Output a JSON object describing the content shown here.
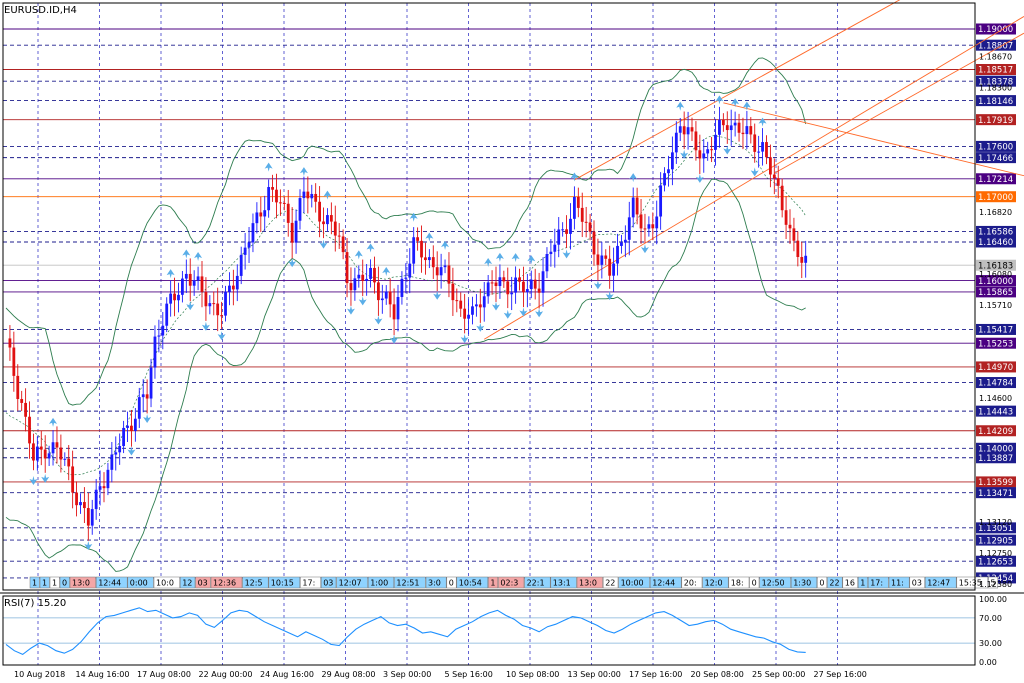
{
  "symbol_label": "EURUSD.ID,H4",
  "rsi_label": "RSI(7) 15.20",
  "colors": {
    "bull": "#1a1aff",
    "bear": "#e01010",
    "band": "#2e7d4f",
    "grid": "#2020c0",
    "channel": "#ff6a2b",
    "rsi": "#1e90ff",
    "arrow": "#5aaee8",
    "axis": "#000000"
  },
  "chart_data": [
    {
      "type": "candlestick",
      "symbol": "EURUSD.ID",
      "timeframe": "H4",
      "ylim": [
        1.1231,
        1.1931
      ],
      "x_tick_labels": [
        "10 Aug 2018",
        "14 Aug 16:00",
        "17 Aug 08:00",
        "22 Aug 00:00",
        "24 Aug 16:00",
        "29 Aug 08:00",
        "3 Sep 00:00",
        "5 Sep 16:00",
        "10 Sep 08:00",
        "13 Sep 00:00",
        "17 Sep 16:00",
        "20 Sep 08:00",
        "25 Sep 00:00",
        "27 Sep 16:00"
      ],
      "price_scale_labels": [
        "1.18670",
        "1.18300",
        "1.16820",
        "1.16080",
        "1.15710",
        "1.14600",
        "1.13120",
        "1.12750",
        "1.12380"
      ],
      "marked_levels": [
        {
          "label": "1.19000",
          "color": "#4b0082"
        },
        {
          "label": "1.18807",
          "color": "#1c1c8c"
        },
        {
          "label": "1.18517",
          "color": "#b22222"
        },
        {
          "label": "1.18378",
          "color": "#1c1c8c"
        },
        {
          "label": "1.18146",
          "color": "#1c1c8c"
        },
        {
          "label": "1.17919",
          "color": "#b22222"
        },
        {
          "label": "1.17600",
          "color": "#1c1c8c"
        },
        {
          "label": "1.17466",
          "color": "#1c1c8c"
        },
        {
          "label": "1.17214",
          "color": "#4b0082"
        },
        {
          "label": "1.17000",
          "color": "#ff6a00"
        },
        {
          "label": "1.16586",
          "color": "#1c1c8c"
        },
        {
          "label": "1.16460",
          "color": "#1c1c8c"
        },
        {
          "label": "1.16183",
          "color": "#c0c0c0"
        },
        {
          "label": "1.16000",
          "color": "#4b0082"
        },
        {
          "label": "1.15865",
          "color": "#4b0082"
        },
        {
          "label": "1.15417",
          "color": "#1c1c8c"
        },
        {
          "label": "1.15253",
          "color": "#4b0082"
        },
        {
          "label": "1.14970",
          "color": "#b22222"
        },
        {
          "label": "1.14784",
          "color": "#1c1c8c"
        },
        {
          "label": "1.14443",
          "color": "#1c1c8c"
        },
        {
          "label": "1.14209",
          "color": "#b22222"
        },
        {
          "label": "1.14000",
          "color": "#1c1c8c"
        },
        {
          "label": "1.13887",
          "color": "#1c1c8c"
        },
        {
          "label": "1.13599",
          "color": "#b22222"
        },
        {
          "label": "1.13471",
          "color": "#1c1c8c"
        },
        {
          "label": "1.13051",
          "color": "#1c1c8c"
        },
        {
          "label": "1.12905",
          "color": "#1c1c8c"
        },
        {
          "label": "1.12653",
          "color": "#1c1c8c"
        },
        {
          "label": "1.12454",
          "color": "#1c1c8c"
        }
      ],
      "close_path": [
        [
          0,
          1.1525
        ],
        [
          4,
          1.1455
        ],
        [
          7,
          1.1385
        ],
        [
          10,
          1.1402
        ],
        [
          13,
          1.1398
        ],
        [
          16,
          1.1372
        ],
        [
          19,
          1.133
        ],
        [
          21,
          1.131
        ],
        [
          24,
          1.136
        ],
        [
          27,
          1.138
        ],
        [
          30,
          1.142
        ],
        [
          33,
          1.144
        ],
        [
          36,
          1.1465
        ],
        [
          38,
          1.153
        ],
        [
          40,
          1.1555
        ],
        [
          43,
          1.158
        ],
        [
          46,
          1.161
        ],
        [
          49,
          1.159
        ],
        [
          52,
          1.1575
        ],
        [
          55,
          1.156
        ],
        [
          58,
          1.16
        ],
        [
          61,
          1.164
        ],
        [
          64,
          1.167
        ],
        [
          67,
          1.171
        ],
        [
          70,
          1.169
        ],
        [
          73,
          1.166
        ],
        [
          76,
          1.1705
        ],
        [
          79,
          1.169
        ],
        [
          82,
          1.167
        ],
        [
          85,
          1.165
        ],
        [
          87,
          1.1605
        ],
        [
          90,
          1.1595
        ],
        [
          93,
          1.161
        ],
        [
          96,
          1.158
        ],
        [
          99,
          1.156
        ],
        [
          101,
          1.16
        ],
        [
          104,
          1.164
        ],
        [
          107,
          1.163
        ],
        [
          110,
          1.1615
        ],
        [
          113,
          1.1598
        ],
        [
          116,
          1.1565
        ],
        [
          119,
          1.1555
        ],
        [
          121,
          1.158
        ],
        [
          124,
          1.16
        ],
        [
          127,
          1.159
        ],
        [
          130,
          1.16
        ],
        [
          133,
          1.1585
        ],
        [
          136,
          1.16
        ],
        [
          139,
          1.1635
        ],
        [
          142,
          1.166
        ],
        [
          145,
          1.169
        ],
        [
          148,
          1.1665
        ],
        [
          151,
          1.163
        ],
        [
          154,
          1.1608
        ],
        [
          157,
          1.165
        ],
        [
          160,
          1.1685
        ],
        [
          163,
          1.166
        ],
        [
          166,
          1.168
        ],
        [
          169,
          1.174
        ],
        [
          172,
          1.179
        ],
        [
          175,
          1.1765
        ],
        [
          178,
          1.175
        ],
        [
          181,
          1.177
        ],
        [
          184,
          1.1792
        ],
        [
          187,
          1.178
        ],
        [
          190,
          1.1768
        ],
        [
          193,
          1.176
        ],
        [
          196,
          1.1715
        ],
        [
          199,
          1.168
        ],
        [
          201,
          1.164
        ],
        [
          203,
          1.162
        ]
      ]
    },
    {
      "type": "line",
      "name": "RSI(7)",
      "ylim": [
        0,
        100
      ],
      "y_tick_labels": [
        "100.00",
        "70.00",
        "30.00",
        "0.00"
      ],
      "values": [
        28,
        18,
        12,
        22,
        30,
        26,
        18,
        14,
        20,
        32,
        48,
        62,
        72,
        74,
        78,
        82,
        86,
        80,
        82,
        76,
        70,
        72,
        78,
        74,
        60,
        55,
        66,
        78,
        82,
        80,
        72,
        64,
        58,
        52,
        46,
        40,
        48,
        42,
        36,
        28,
        26,
        40,
        52,
        60,
        66,
        72,
        62,
        58,
        60,
        54,
        46,
        48,
        44,
        40,
        52,
        58,
        64,
        72,
        78,
        82,
        74,
        68,
        58,
        54,
        48,
        56,
        60,
        66,
        72,
        70,
        64,
        58,
        50,
        46,
        52,
        60,
        66,
        72,
        78,
        80,
        74,
        66,
        58,
        60,
        64,
        66,
        60,
        52,
        48,
        44,
        40,
        38,
        32,
        28,
        20,
        16,
        15.2
      ]
    }
  ],
  "time_stamps": [
    {
      "t": "1",
      "c": "#8fd3ff"
    },
    {
      "t": "1",
      "c": "#8fd3ff"
    },
    {
      "t": "1",
      "c": "#ffffff"
    },
    {
      "t": "0",
      "c": "#8fd3ff"
    },
    {
      "t": "13:0",
      "c": "#f4a6a6"
    },
    {
      "t": "12:44",
      "c": "#8fd3ff"
    },
    {
      "t": "0:00",
      "c": "#8fd3ff"
    },
    {
      "t": "10:0",
      "c": "#ffffff"
    },
    {
      "t": "12",
      "c": "#8fd3ff"
    },
    {
      "t": "03",
      "c": "#f4a6a6"
    },
    {
      "t": "12:36",
      "c": "#f4a6a6"
    },
    {
      "t": "12:5",
      "c": "#8fd3ff"
    },
    {
      "t": "10:15",
      "c": "#8fd3ff"
    },
    {
      "t": "17:",
      "c": "#ffffff"
    },
    {
      "t": "03",
      "c": "#8fd3ff"
    },
    {
      "t": "12:07",
      "c": "#8fd3ff"
    },
    {
      "t": "1:00",
      "c": "#8fd3ff"
    },
    {
      "t": "12:51",
      "c": "#8fd3ff"
    },
    {
      "t": "3:0",
      "c": "#8fd3ff"
    },
    {
      "t": "0",
      "c": "#ffffff"
    },
    {
      "t": "10:54",
      "c": "#8fd3ff"
    },
    {
      "t": "1",
      "c": "#f4a6a6"
    },
    {
      "t": "02:3",
      "c": "#f4a6a6"
    },
    {
      "t": "22:1",
      "c": "#8fd3ff"
    },
    {
      "t": "13:1",
      "c": "#8fd3ff"
    },
    {
      "t": "13:0",
      "c": "#f4a6a6"
    },
    {
      "t": "22",
      "c": "#ffffff"
    },
    {
      "t": "10:00",
      "c": "#8fd3ff"
    },
    {
      "t": "12:44",
      "c": "#8fd3ff"
    },
    {
      "t": "20:",
      "c": "#ffffff"
    },
    {
      "t": "12:0",
      "c": "#8fd3ff"
    },
    {
      "t": "18:",
      "c": "#ffffff"
    },
    {
      "t": "0",
      "c": "#ffffff"
    },
    {
      "t": "12:50",
      "c": "#8fd3ff"
    },
    {
      "t": "1:30",
      "c": "#8fd3ff"
    },
    {
      "t": "0",
      "c": "#ffffff"
    },
    {
      "t": "22",
      "c": "#8fd3ff"
    },
    {
      "t": "16",
      "c": "#ffffff"
    },
    {
      "t": "1",
      "c": "#8fd3ff"
    },
    {
      "t": "17:",
      "c": "#8fd3ff"
    },
    {
      "t": "11:",
      "c": "#8fd3ff"
    },
    {
      "t": "03",
      "c": "#ffffff"
    },
    {
      "t": "12:47",
      "c": "#8fd3ff"
    },
    {
      "t": "15:35",
      "c": "#ffffff"
    },
    {
      "t": "5",
      "c": "#ffffff"
    }
  ]
}
